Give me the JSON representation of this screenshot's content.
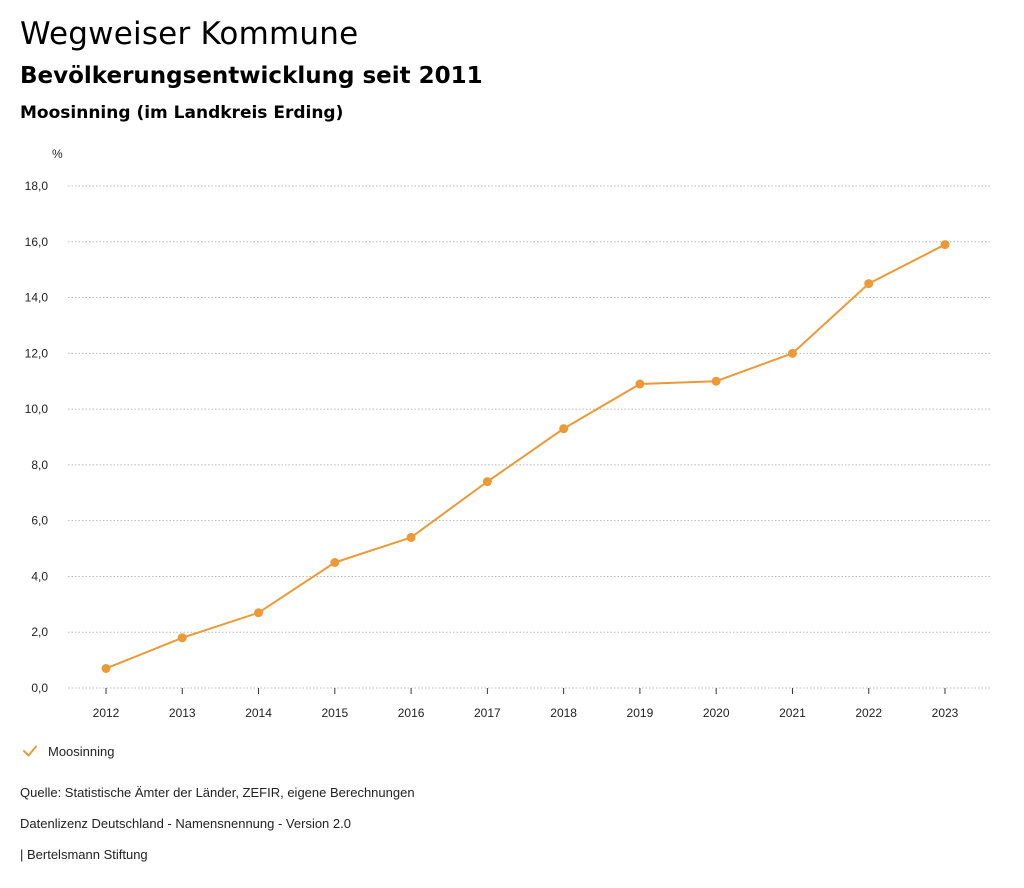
{
  "header": {
    "title": "Wegweiser Kommune",
    "subtitle": "Bevölkerungsentwicklung seit 2011",
    "region": "Moosinning (im Landkreis Erding)"
  },
  "chart_data": {
    "type": "line",
    "title": "Bevölkerungsentwicklung seit 2011",
    "xlabel": "",
    "ylabel": "%",
    "ylim": [
      0,
      18
    ],
    "yticks": [
      "0,0",
      "2,0",
      "4,0",
      "6,0",
      "8,0",
      "10,0",
      "12,0",
      "14,0",
      "16,0",
      "18,0"
    ],
    "categories": [
      "2012",
      "2013",
      "2014",
      "2015",
      "2016",
      "2017",
      "2018",
      "2019",
      "2020",
      "2021",
      "2022",
      "2023"
    ],
    "series": [
      {
        "name": "Moosinning",
        "color": "#ec9a37",
        "values": [
          0.7,
          1.8,
          2.7,
          4.5,
          5.4,
          7.4,
          9.3,
          10.9,
          11.0,
          12.0,
          14.5,
          15.9
        ]
      }
    ],
    "grid": true,
    "legend": "bottom-left"
  },
  "legend": {
    "label": "Moosinning"
  },
  "footer": {
    "source": "Quelle: Statistische Ämter der Länder, ZEFIR, eigene Berechnungen",
    "license": "Datenlizenz Deutschland - Namensnennung - Version 2.0",
    "publisher": "| Bertelsmann Stiftung"
  }
}
